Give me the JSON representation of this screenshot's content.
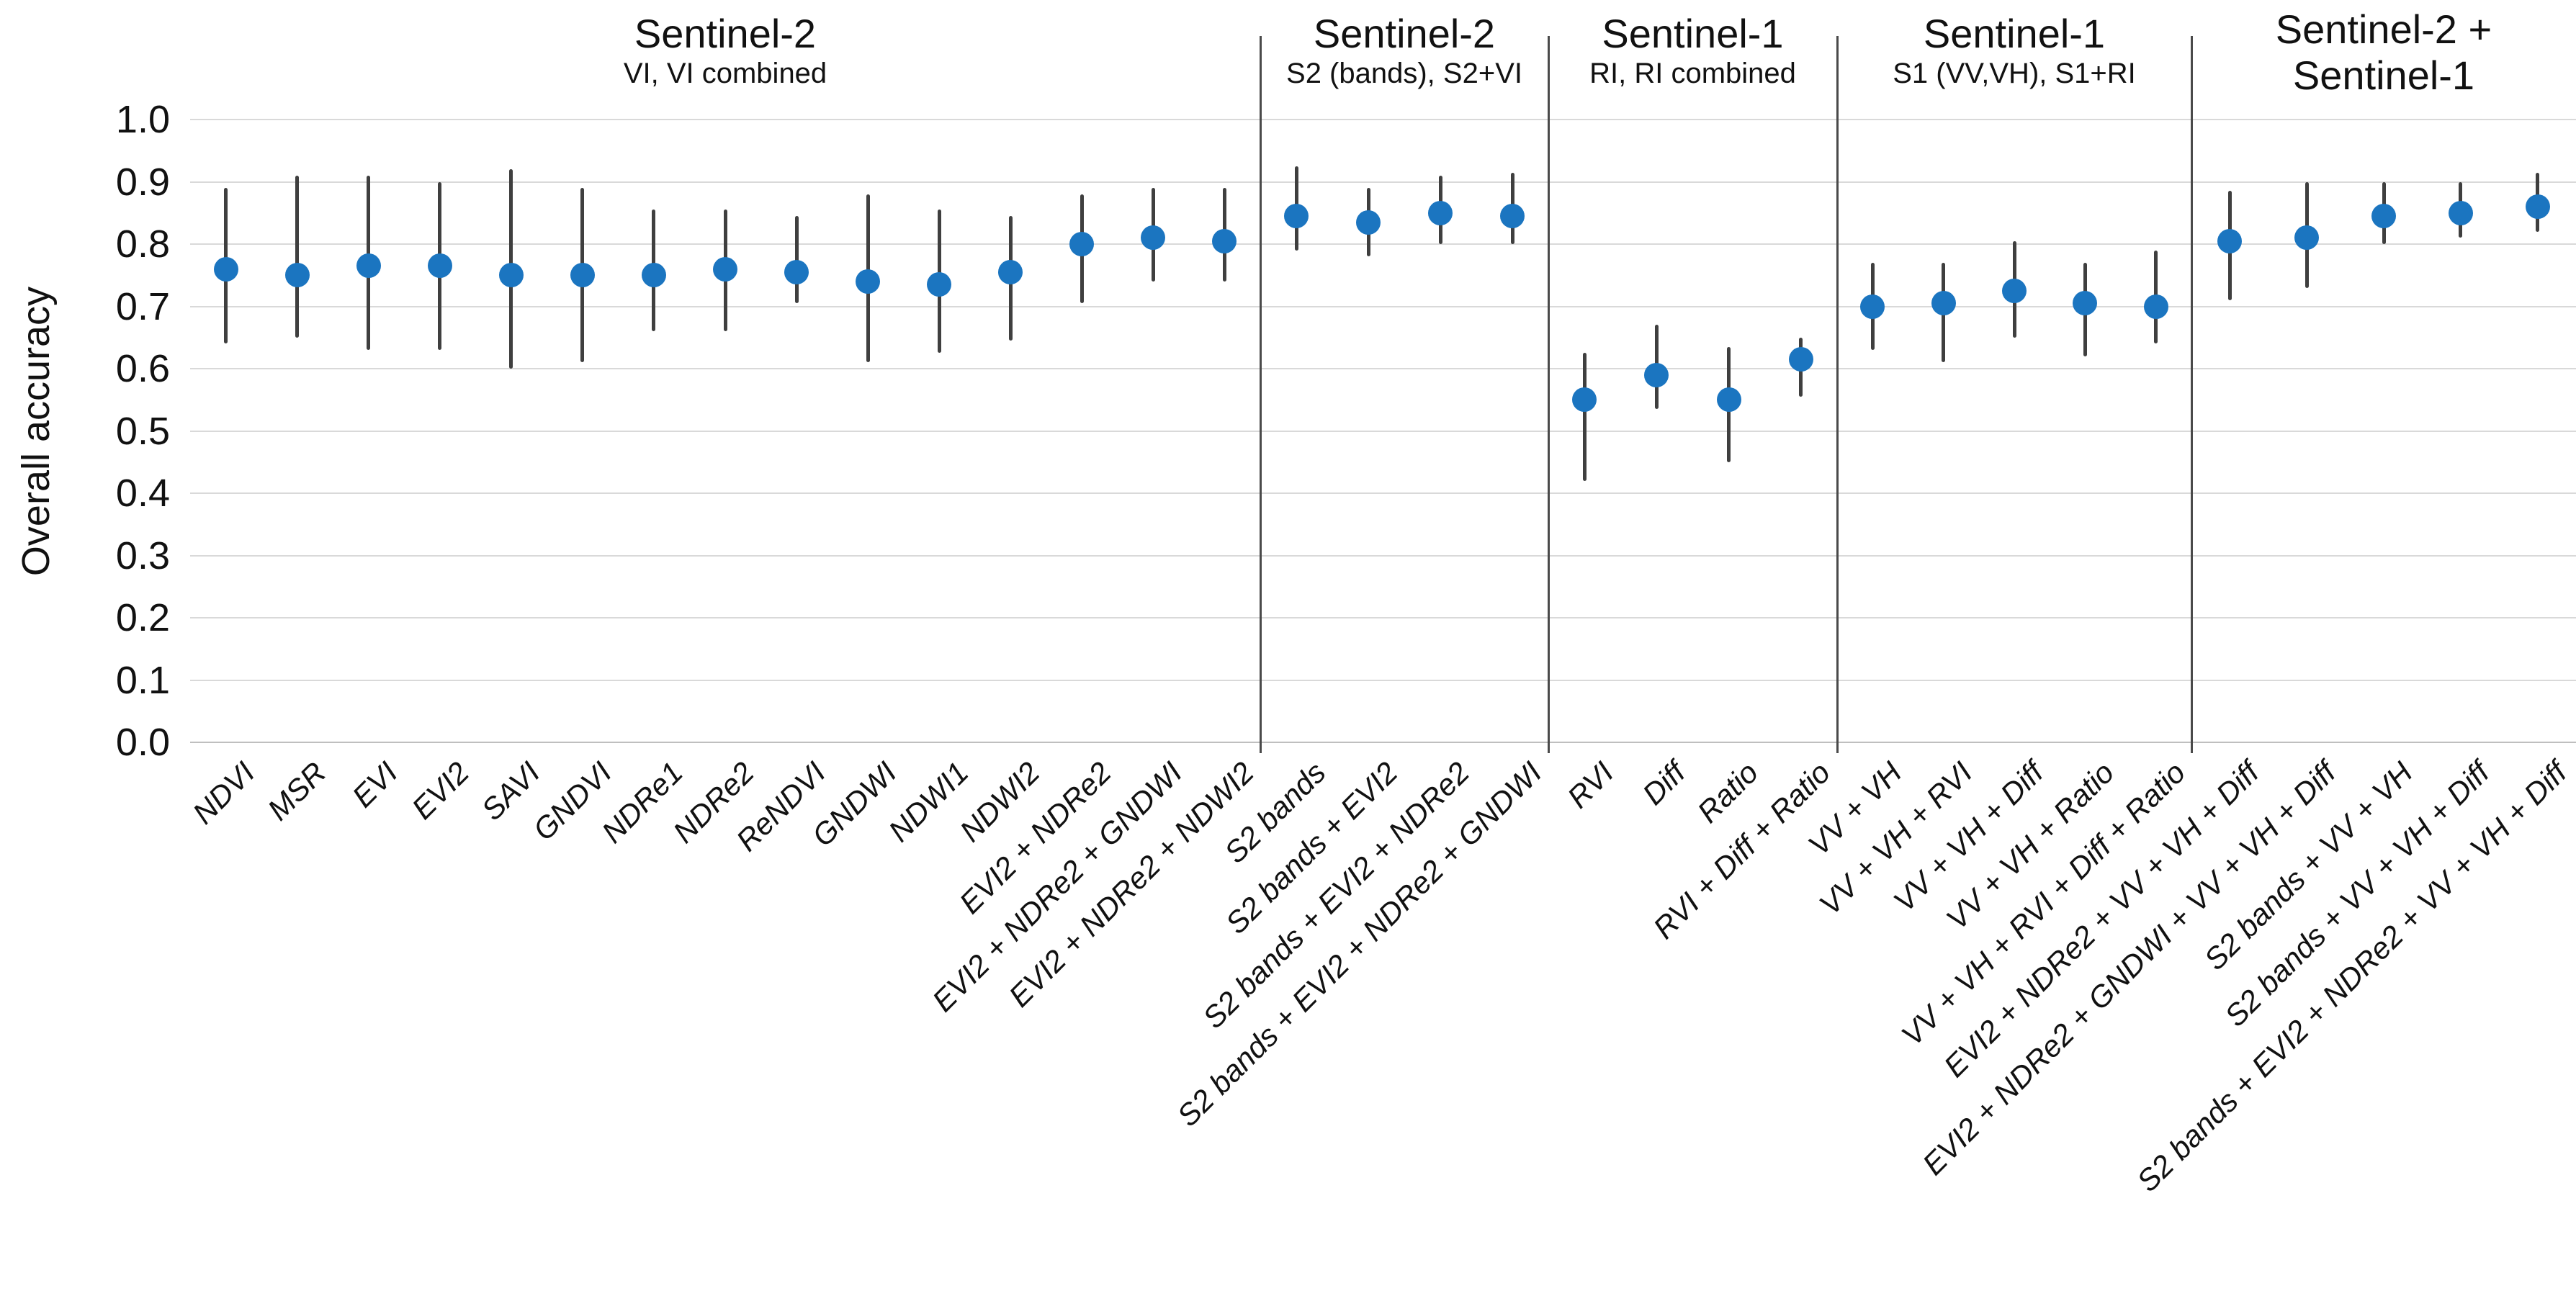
{
  "chart_data": {
    "type": "scatter",
    "title": "",
    "ylabel": "Overall accuracy",
    "ylim": [
      0.0,
      1.0
    ],
    "ytick_step": 0.1,
    "yticks": [
      "1.0",
      "0.9",
      "0.8",
      "0.7",
      "0.6",
      "0.5",
      "0.4",
      "0.3",
      "0.2",
      "0.1",
      "0.0"
    ],
    "grid": "horizontal-only",
    "legend": "none",
    "marker_color": "#1b75c0",
    "errorbar_color": "#3f3f3f",
    "gridline_color": "#d9d9d9",
    "divider_color": "#4a4a4a",
    "series_note": "blue dot = overall accuracy, vertical bar = min/max range",
    "groups": [
      {
        "title": "Sentinel-2",
        "subtitle": "VI, VI combined",
        "subtitle_large": false,
        "points": [
          {
            "label": "NDVI",
            "value": 0.76,
            "lo": 0.64,
            "hi": 0.89
          },
          {
            "label": "MSR",
            "value": 0.75,
            "lo": 0.65,
            "hi": 0.91
          },
          {
            "label": "EVI",
            "value": 0.765,
            "lo": 0.63,
            "hi": 0.91
          },
          {
            "label": "EVI2",
            "value": 0.765,
            "lo": 0.63,
            "hi": 0.9
          },
          {
            "label": "SAVI",
            "value": 0.75,
            "lo": 0.6,
            "hi": 0.92
          },
          {
            "label": "GNDVI",
            "value": 0.75,
            "lo": 0.61,
            "hi": 0.89
          },
          {
            "label": "NDRe1",
            "value": 0.75,
            "lo": 0.66,
            "hi": 0.855
          },
          {
            "label": "NDRe2",
            "value": 0.76,
            "lo": 0.66,
            "hi": 0.855
          },
          {
            "label": "ReNDVI",
            "value": 0.755,
            "lo": 0.705,
            "hi": 0.845
          },
          {
            "label": "GNDWI",
            "value": 0.74,
            "lo": 0.61,
            "hi": 0.88
          },
          {
            "label": "NDWI1",
            "value": 0.735,
            "lo": 0.625,
            "hi": 0.855
          },
          {
            "label": "NDWI2",
            "value": 0.755,
            "lo": 0.645,
            "hi": 0.845
          },
          {
            "label": "EVI2 + NDRe2",
            "value": 0.8,
            "lo": 0.705,
            "hi": 0.88
          },
          {
            "label": "EVI2 + NDRe2 + GNDWI",
            "value": 0.81,
            "lo": 0.74,
            "hi": 0.89
          },
          {
            "label": "EVI2 + NDRe2 + NDWI2",
            "value": 0.805,
            "lo": 0.74,
            "hi": 0.89
          }
        ]
      },
      {
        "title": "Sentinel-2",
        "subtitle": "S2 (bands), S2+VI",
        "subtitle_large": false,
        "points": [
          {
            "label": "S2 bands",
            "value": 0.845,
            "lo": 0.79,
            "hi": 0.925
          },
          {
            "label": "S2 bands + EVI2",
            "value": 0.835,
            "lo": 0.78,
            "hi": 0.89
          },
          {
            "label": "S2 bands + EVI2 + NDRe2",
            "value": 0.85,
            "lo": 0.8,
            "hi": 0.91
          },
          {
            "label": "S2 bands + EVI2 + NDRe2 + GNDWI",
            "value": 0.845,
            "lo": 0.8,
            "hi": 0.915
          }
        ]
      },
      {
        "title": "Sentinel-1",
        "subtitle": "RI, RI combined",
        "subtitle_large": false,
        "points": [
          {
            "label": "RVI",
            "value": 0.55,
            "lo": 0.42,
            "hi": 0.625
          },
          {
            "label": "Diff",
            "value": 0.59,
            "lo": 0.535,
            "hi": 0.67
          },
          {
            "label": "Ratio",
            "value": 0.55,
            "lo": 0.45,
            "hi": 0.635
          },
          {
            "label": "RVI + Diff + Ratio",
            "value": 0.615,
            "lo": 0.555,
            "hi": 0.65
          }
        ]
      },
      {
        "title": "Sentinel-1",
        "subtitle": "S1 (VV,VH), S1+RI",
        "subtitle_large": false,
        "points": [
          {
            "label": "VV + VH",
            "value": 0.7,
            "lo": 0.63,
            "hi": 0.77
          },
          {
            "label": "VV + VH + RVI",
            "value": 0.705,
            "lo": 0.61,
            "hi": 0.77
          },
          {
            "label": "VV + VH + Diff",
            "value": 0.725,
            "lo": 0.65,
            "hi": 0.805
          },
          {
            "label": "VV + VH + Ratio",
            "value": 0.705,
            "lo": 0.62,
            "hi": 0.77
          },
          {
            "label": "VV + VH + RVI + Diff + Ratio",
            "value": 0.7,
            "lo": 0.64,
            "hi": 0.79
          }
        ]
      },
      {
        "title": "Sentinel-2 +",
        "subtitle": "Sentinel-1",
        "subtitle_large": true,
        "points": [
          {
            "label": "EVI2 + NDRe2 + VV + VH + Diff",
            "value": 0.805,
            "lo": 0.71,
            "hi": 0.885
          },
          {
            "label": "EVI2 + NDRe2 + GNDWI + VV + VH + Diff",
            "value": 0.81,
            "lo": 0.73,
            "hi": 0.9
          },
          {
            "label": "S2 bands + VV + VH",
            "value": 0.845,
            "lo": 0.8,
            "hi": 0.9
          },
          {
            "label": "S2 bands + VV + VH + Diff",
            "value": 0.85,
            "lo": 0.81,
            "hi": 0.9
          },
          {
            "label": "S2 bands + EVI2 + NDRe2 + VV + VH + Diff",
            "value": 0.86,
            "lo": 0.82,
            "hi": 0.915
          }
        ]
      }
    ]
  }
}
